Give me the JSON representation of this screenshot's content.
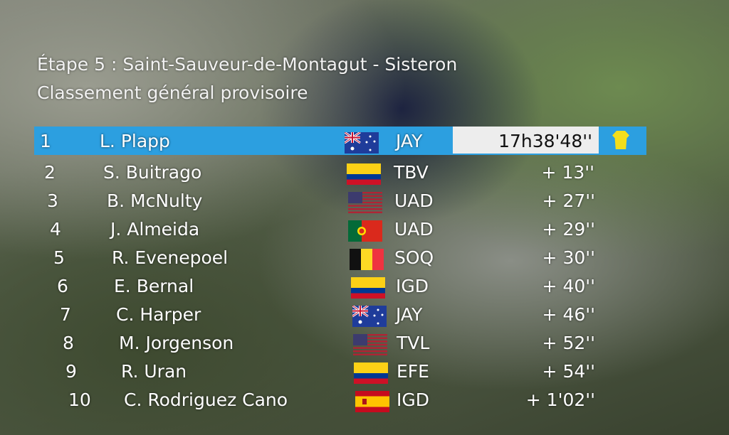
{
  "header": {
    "stage": "Étape 5 : Saint-Sauveur-de-Montagut - Sisteron",
    "classification": "Classement général provisoire"
  },
  "colors": {
    "leader_bar": "#2c9fe0",
    "time_box": "#ededed",
    "yellow_jersey": "#f3de1c"
  },
  "rows": [
    {
      "rank": "1",
      "name": "L. Plapp",
      "flag": "AUS",
      "team": "JAY",
      "time": "17h38'48''",
      "jersey": "yellow-jersey-icon"
    },
    {
      "rank": "2",
      "name": "S. Buitrago",
      "flag": "COL",
      "team": "TBV",
      "time": "+ 13''"
    },
    {
      "rank": "3",
      "name": "B. McNulty",
      "flag": "USA",
      "team": "UAD",
      "time": "+ 27''"
    },
    {
      "rank": "4",
      "name": "J. Almeida",
      "flag": "POR",
      "team": "UAD",
      "time": "+ 29''"
    },
    {
      "rank": "5",
      "name": "R. Evenepoel",
      "flag": "BEL",
      "team": "SOQ",
      "time": "+ 30''"
    },
    {
      "rank": "6",
      "name": "E. Bernal",
      "flag": "COL",
      "team": "IGD",
      "time": "+ 40''"
    },
    {
      "rank": "7",
      "name": "C. Harper",
      "flag": "AUS",
      "team": "JAY",
      "time": "+ 46''"
    },
    {
      "rank": "8",
      "name": "M. Jorgenson",
      "flag": "USA",
      "team": "TVL",
      "time": "+ 52''"
    },
    {
      "rank": "9",
      "name": "R. Uran",
      "flag": "COL",
      "team": "EFE",
      "time": "+ 54''"
    },
    {
      "rank": "10",
      "name": "C. Rodriguez Cano",
      "flag": "ESP",
      "team": "IGD",
      "time": "+ 1'02''"
    }
  ]
}
